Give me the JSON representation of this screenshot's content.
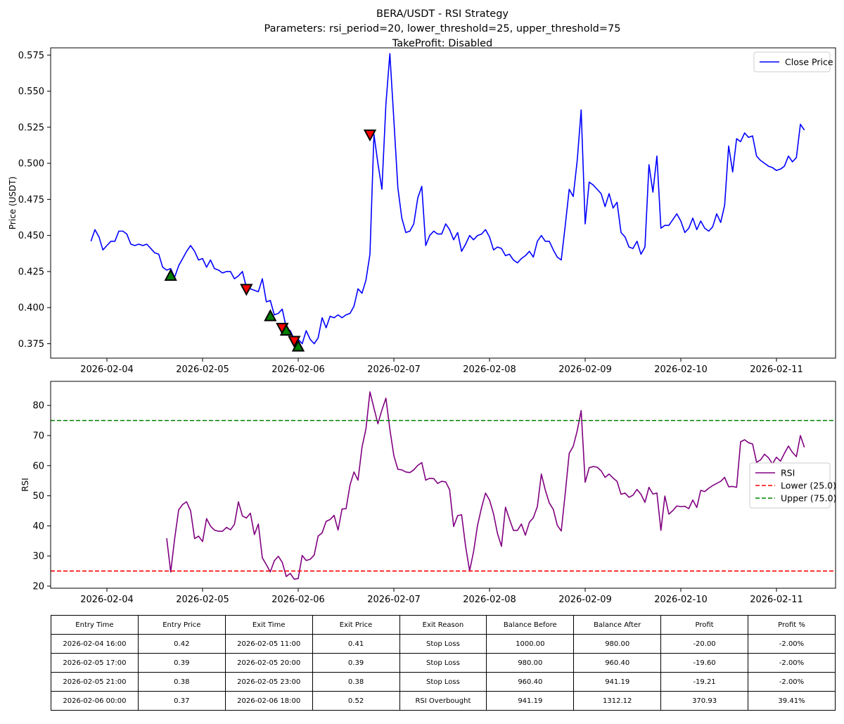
{
  "chart_data": [
    {
      "type": "line",
      "title": "BERA/USDT - RSI Strategy",
      "subtitle": "Parameters: rsi_period=20, lower_threshold=25, upper_threshold=75",
      "subtitle2": "TakeProfit: Disabled",
      "xlabel": "",
      "ylabel": "Price (USDT)",
      "x_ticks": [
        "2026-02-04",
        "2026-02-05",
        "2026-02-06",
        "2026-02-07",
        "2026-02-08",
        "2026-02-09",
        "2026-02-10",
        "2026-02-11"
      ],
      "y_ticks": [
        "0.375",
        "0.400",
        "0.425",
        "0.450",
        "0.475",
        "0.500",
        "0.525",
        "0.550",
        "0.575"
      ],
      "ylim": [
        0.365,
        0.58
      ],
      "legend_position": "top-right",
      "grid": false,
      "series": [
        {
          "name": "Close Price",
          "color": "#0000ff",
          "x_start": "2026-02-03 20:00",
          "interval_hours": 1,
          "values": [
            0.446,
            0.454,
            0.449,
            0.44,
            0.443,
            0.446,
            0.446,
            0.453,
            0.453,
            0.451,
            0.444,
            0.443,
            0.444,
            0.443,
            0.444,
            0.441,
            0.438,
            0.437,
            0.428,
            0.426,
            0.427,
            0.421,
            0.429,
            0.434,
            0.439,
            0.443,
            0.439,
            0.433,
            0.434,
            0.428,
            0.433,
            0.427,
            0.426,
            0.424,
            0.425,
            0.425,
            0.42,
            0.422,
            0.425,
            0.414,
            0.413,
            0.412,
            0.411,
            0.42,
            0.404,
            0.405,
            0.395,
            0.396,
            0.399,
            0.386,
            0.384,
            0.378,
            0.378,
            0.375,
            0.384,
            0.378,
            0.375,
            0.379,
            0.393,
            0.386,
            0.394,
            0.393,
            0.395,
            0.393,
            0.395,
            0.396,
            0.401,
            0.413,
            0.41,
            0.419,
            0.437,
            0.52,
            0.5,
            0.482,
            0.541,
            0.576,
            0.53,
            0.483,
            0.462,
            0.452,
            0.453,
            0.458,
            0.476,
            0.484,
            0.443,
            0.45,
            0.453,
            0.451,
            0.451,
            0.458,
            0.454,
            0.447,
            0.452,
            0.439,
            0.444,
            0.45,
            0.447,
            0.45,
            0.451,
            0.454,
            0.449,
            0.44,
            0.442,
            0.441,
            0.436,
            0.437,
            0.433,
            0.431,
            0.434,
            0.436,
            0.439,
            0.435,
            0.446,
            0.45,
            0.446,
            0.446,
            0.44,
            0.435,
            0.433,
            0.457,
            0.482,
            0.477,
            0.502,
            0.537,
            0.458,
            0.487,
            0.485,
            0.482,
            0.479,
            0.47,
            0.479,
            0.469,
            0.473,
            0.452,
            0.449,
            0.442,
            0.441,
            0.446,
            0.437,
            0.442,
            0.499,
            0.48,
            0.505,
            0.455,
            0.457,
            0.457,
            0.461,
            0.465,
            0.46,
            0.452,
            0.455,
            0.462,
            0.454,
            0.46,
            0.455,
            0.453,
            0.456,
            0.465,
            0.459,
            0.471,
            0.512,
            0.494,
            0.517,
            0.515,
            0.521,
            0.518,
            0.519,
            0.505,
            0.502,
            0.5,
            0.498,
            0.497,
            0.495,
            0.496,
            0.498,
            0.505,
            0.501,
            0.504,
            0.527,
            0.523
          ]
        }
      ],
      "markers": [
        {
          "type": "buy",
          "x": "2026-02-04 16:00",
          "y": 0.422,
          "color": "#008000"
        },
        {
          "type": "sell",
          "x": "2026-02-05 11:00",
          "y": 0.413,
          "color": "#ff0000"
        },
        {
          "type": "buy",
          "x": "2026-02-05 17:00",
          "y": 0.394,
          "color": "#008000"
        },
        {
          "type": "sell",
          "x": "2026-02-05 20:00",
          "y": 0.386,
          "color": "#ff0000"
        },
        {
          "type": "buy",
          "x": "2026-02-05 21:00",
          "y": 0.384,
          "color": "#008000"
        },
        {
          "type": "sell",
          "x": "2026-02-05 23:00",
          "y": 0.377,
          "color": "#ff0000"
        },
        {
          "type": "buy",
          "x": "2026-02-06 00:00",
          "y": 0.373,
          "color": "#008000"
        },
        {
          "type": "sell",
          "x": "2026-02-06 18:00",
          "y": 0.52,
          "color": "#ff0000"
        }
      ]
    },
    {
      "type": "line",
      "title": "",
      "xlabel": "",
      "ylabel": "RSI",
      "x_ticks": [
        "2026-02-04",
        "2026-02-05",
        "2026-02-06",
        "2026-02-07",
        "2026-02-08",
        "2026-02-09",
        "2026-02-10",
        "2026-02-11"
      ],
      "y_ticks": [
        "20",
        "30",
        "40",
        "50",
        "60",
        "70",
        "80"
      ],
      "ylim": [
        19.3,
        88
      ],
      "legend_position": "center-right",
      "grid": false,
      "series": [
        {
          "name": "RSI",
          "color": "#800080",
          "x_start": "2026-02-04 15:00",
          "interval_hours": 1,
          "values": [
            35.9,
            24.7,
            35.7,
            45.3,
            47.1,
            48.0,
            45.0,
            35.8,
            36.6,
            34.8,
            42.4,
            39.9,
            38.6,
            38.2,
            38.2,
            39.5,
            38.7,
            40.5,
            48.0,
            43.3,
            42.6,
            44.2,
            37.1,
            40.6,
            29.4,
            27.1,
            24.7,
            28.4,
            29.9,
            27.9,
            23.2,
            24.2,
            22.3,
            22.5,
            30.2,
            28.5,
            28.9,
            30.3,
            36.6,
            37.7,
            41.5,
            42.1,
            43.5,
            38.6,
            45.6,
            45.7,
            53.6,
            57.9,
            55.2,
            66.1,
            72.2,
            84.5,
            79.1,
            73.9,
            78.5,
            82.4,
            72.1,
            63.3,
            58.8,
            58.6,
            57.9,
            57.7,
            58.6,
            60.1,
            61.0,
            55.2,
            55.8,
            55.7,
            54.1,
            54.8,
            54.6,
            52.0,
            39.8,
            43.4,
            43.7,
            33.2,
            25.1,
            31.4,
            40.2,
            46.1,
            50.9,
            48.6,
            44.0,
            37.5,
            33.2,
            46.2,
            42.3,
            38.5,
            38.5,
            40.6,
            36.9,
            41.2,
            42.7,
            46.4,
            57.2,
            51.9,
            47.6,
            45.5,
            40.2,
            38.3,
            50.9,
            64.1,
            66.4,
            71.6,
            78.3,
            54.5,
            59.3,
            59.7,
            59.5,
            58.3,
            56.1,
            57.2,
            55.9,
            54.8,
            50.5,
            50.9,
            49.5,
            50.2,
            52.1,
            50.5,
            47.8,
            52.8,
            50.6,
            50.9,
            38.5,
            49.9,
            43.9,
            45.1,
            46.6,
            46.4,
            46.5,
            45.7,
            48.6,
            46.1,
            51.8,
            51.4,
            52.5,
            53.4,
            54.1,
            54.8,
            56.1,
            53.0,
            53.1,
            52.8,
            67.9,
            68.6,
            67.6,
            67.2,
            61.1,
            61.9,
            63.8,
            62.6,
            60.6,
            62.8,
            61.5,
            64.1,
            66.5,
            64.4,
            63.0,
            70.0,
            66.1
          ]
        },
        {
          "name": "Lower (25.0)",
          "color": "#ff0000",
          "value": 25.0,
          "style": "dashed"
        },
        {
          "name": "Upper (75.0)",
          "color": "#008000",
          "value": 75.0,
          "style": "dashed"
        }
      ]
    }
  ],
  "trades_table": {
    "headers": [
      "Entry Time",
      "Entry Price",
      "Exit Time",
      "Exit Price",
      "Exit Reason",
      "Balance Before",
      "Balance After",
      "Profit",
      "Profit %"
    ],
    "rows": [
      [
        "2026-02-04 16:00",
        "0.42",
        "2026-02-05 11:00",
        "0.41",
        "Stop Loss",
        "1000.00",
        "980.00",
        "-20.00",
        "-2.00%"
      ],
      [
        "2026-02-05 17:00",
        "0.39",
        "2026-02-05 20:00",
        "0.39",
        "Stop Loss",
        "980.00",
        "960.40",
        "-19.60",
        "-2.00%"
      ],
      [
        "2026-02-05 21:00",
        "0.38",
        "2026-02-05 23:00",
        "0.38",
        "Stop Loss",
        "960.40",
        "941.19",
        "-19.21",
        "-2.00%"
      ],
      [
        "2026-02-06 00:00",
        "0.37",
        "2026-02-06 18:00",
        "0.52",
        "RSI Overbought",
        "941.19",
        "1312.12",
        "370.93",
        "39.41%"
      ]
    ]
  }
}
